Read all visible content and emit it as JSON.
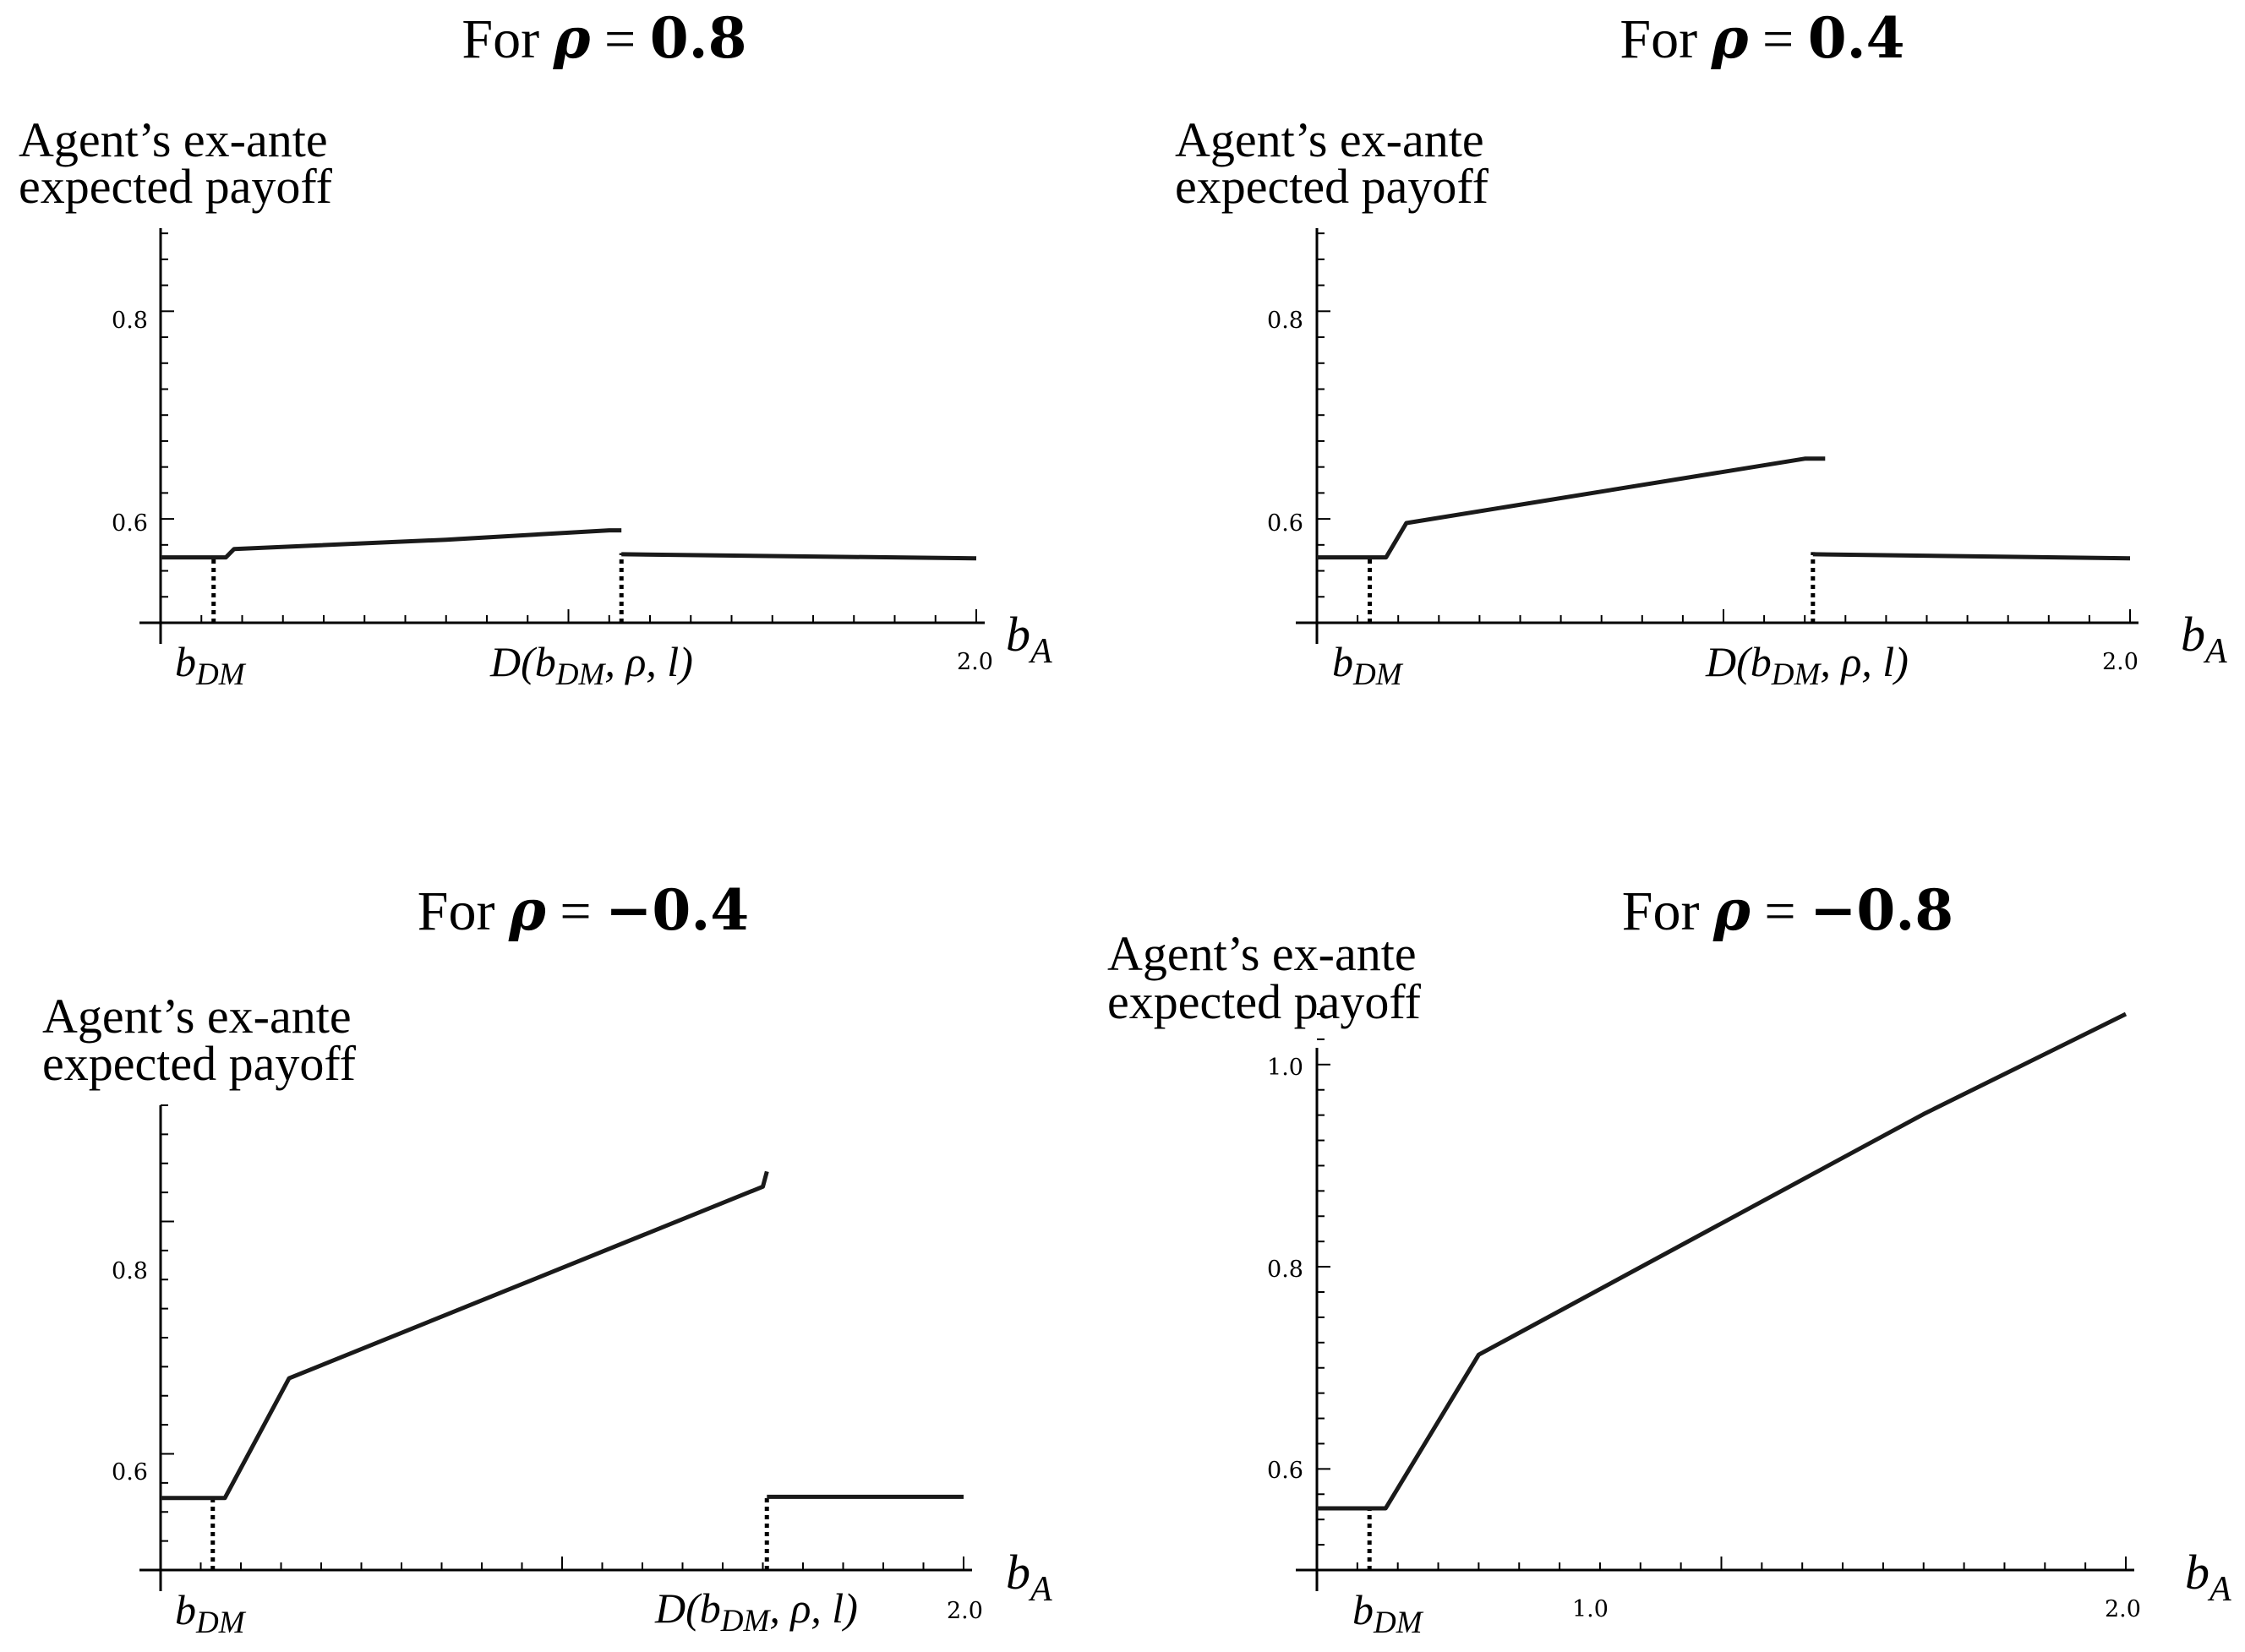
{
  "chart_data": [
    {
      "type": "line",
      "title_prefix": "For ",
      "title_symbol": "ρ",
      "title_eq": " = ",
      "title_value": "0.8",
      "ylabel_line1": "Agent’s ex-ante",
      "ylabel_line2": "expected payoff",
      "xlabel": "b",
      "xlabel_sub": "A",
      "xlim": [
        0,
        2.0
      ],
      "ylim": [
        0.5,
        0.88
      ],
      "yticks": [
        "0.6",
        "0.8"
      ],
      "xtick_labels": [
        "2.0"
      ],
      "marker_labels": [
        {
          "main": "b",
          "sub": "DM",
          "rest": ""
        },
        {
          "main": "D(b",
          "sub": "DM",
          "rest": ", ρ, l)"
        }
      ],
      "dotted_lines": [
        {
          "x": 0.13,
          "y": 0.565
        },
        {
          "x": 1.13,
          "y": 0.567
        }
      ],
      "series": [
        {
          "points": [
            [
              0,
              0.563
            ],
            [
              0.16,
              0.563
            ],
            [
              0.18,
              0.571
            ],
            [
              0.7,
              0.58
            ],
            [
              1.1,
              0.589
            ],
            [
              1.13,
              0.589
            ]
          ]
        },
        {
          "points": [
            [
              1.13,
              0.566
            ],
            [
              2.0,
              0.562
            ]
          ]
        }
      ]
    },
    {
      "type": "line",
      "title_prefix": "For ",
      "title_symbol": "ρ",
      "title_eq": " = ",
      "title_value": "0.4",
      "ylabel_line1": "Agent’s ex-ante",
      "ylabel_line2": "expected payoff",
      "xlabel": "b",
      "xlabel_sub": "A",
      "xlim": [
        0,
        2.0
      ],
      "ylim": [
        0.5,
        0.88
      ],
      "yticks": [
        "0.6",
        "0.8"
      ],
      "xtick_labels": [
        "2.0"
      ],
      "marker_labels": [
        {
          "main": "b",
          "sub": "DM",
          "rest": ""
        },
        {
          "main": "D(b",
          "sub": "DM",
          "rest": ", ρ, l)"
        }
      ],
      "dotted_lines": [
        {
          "x": 0.13,
          "y": 0.563
        },
        {
          "x": 1.22,
          "y": 0.568
        }
      ],
      "series": [
        {
          "points": [
            [
              0,
              0.563
            ],
            [
              0.17,
              0.563
            ],
            [
              0.22,
              0.596
            ],
            [
              1.2,
              0.658
            ],
            [
              1.25,
              0.658
            ]
          ]
        },
        {
          "points": [
            [
              1.22,
              0.566
            ],
            [
              2.0,
              0.562
            ]
          ]
        }
      ]
    },
    {
      "type": "line",
      "title_prefix": "For ",
      "title_symbol": "ρ",
      "title_eq": " = ",
      "title_value": "−0.4",
      "ylabel_line1": "Agent’s ex-ante",
      "ylabel_line2": "expected payoff",
      "xlabel": "b",
      "xlabel_sub": "A",
      "xlim": [
        0,
        2.0
      ],
      "ylim": [
        0.5,
        0.9
      ],
      "yticks": [
        "0.6",
        "0.8"
      ],
      "xtick_labels": [
        "2.0"
      ],
      "marker_labels": [
        {
          "main": "b",
          "sub": "DM",
          "rest": ""
        },
        {
          "main": "D(b",
          "sub": "DM",
          "rest": ", ρ, l)"
        }
      ],
      "dotted_lines": [
        {
          "x": 0.13,
          "y": 0.563
        },
        {
          "x": 1.51,
          "y": 0.563
        }
      ],
      "series": [
        {
          "points": [
            [
              0,
              0.562
            ],
            [
              0.16,
              0.562
            ],
            [
              0.32,
              0.665
            ],
            [
              1.5,
              0.83
            ],
            [
              1.51,
              0.843
            ]
          ]
        },
        {
          "points": [
            [
              1.51,
              0.563
            ],
            [
              2.0,
              0.563
            ]
          ]
        }
      ]
    },
    {
      "type": "line",
      "title_prefix": "For ",
      "title_symbol": "ρ",
      "title_eq": " = ",
      "title_value": "−0.8",
      "ylabel_line1": "Agent’s ex-ante",
      "ylabel_line2": "expected payoff",
      "xlabel": "b",
      "xlabel_sub": "A",
      "xlim": [
        0,
        2.0
      ],
      "ylim": [
        0.5,
        1.05
      ],
      "yticks": [
        "0.6",
        "0.8",
        "1.0"
      ],
      "xtick_labels": [
        "1.0",
        "2.0"
      ],
      "marker_labels": [
        {
          "main": "b",
          "sub": "DM",
          "rest": ""
        }
      ],
      "dotted_lines": [
        {
          "x": 0.13,
          "y": 0.56
        }
      ],
      "series": [
        {
          "points": [
            [
              0,
              0.561
            ],
            [
              0.17,
              0.561
            ],
            [
              0.4,
              0.713
            ],
            [
              1.5,
              0.951
            ],
            [
              2.0,
              1.05
            ]
          ]
        }
      ]
    }
  ]
}
